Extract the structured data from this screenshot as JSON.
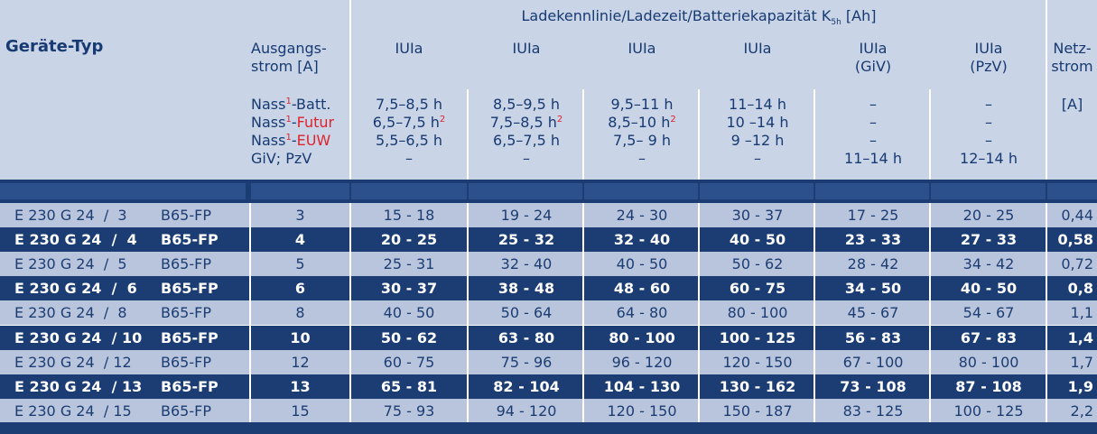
{
  "header": {
    "type_label": "Geräte-Typ",
    "output_label_1": "Ausgangs-",
    "output_label_2": "strom [A]",
    "title_prefix": "Ladekennlinie/Ladezeit/Batteriekapazität K",
    "title_sub": "5h",
    "title_suffix": " [Ah]",
    "net_1": "Netz-",
    "net_2": "strom",
    "net_unit": "[A]",
    "columns": [
      {
        "line1": "IUIa",
        "line2": ""
      },
      {
        "line1": "IUIa",
        "line2": ""
      },
      {
        "line1": "IUIa",
        "line2": ""
      },
      {
        "line1": "IUIa",
        "line2": ""
      },
      {
        "line1": "IUIa",
        "line2": "(GiV)"
      },
      {
        "line1": "IUIa",
        "line2": "(PzV)"
      }
    ],
    "battery_types": [
      {
        "prefix": "Nass",
        "sup": "1",
        "suffix": "-Batt.",
        "suffix_red": false
      },
      {
        "prefix": "Nass",
        "sup": "1",
        "suffix": "-Futur",
        "suffix_red": true
      },
      {
        "prefix": "Nass",
        "sup": "1",
        "suffix": "-EUW",
        "suffix_red": true
      },
      {
        "prefix": "GiV; PzV",
        "sup": "",
        "suffix": "",
        "suffix_red": false
      }
    ],
    "times": [
      [
        {
          "t": "7,5–8,5 h",
          "s": ""
        },
        {
          "t": "6,5–7,5 h",
          "s": "2"
        },
        {
          "t": "5,5–6,5 h",
          "s": ""
        },
        {
          "t": "–",
          "s": ""
        }
      ],
      [
        {
          "t": "8,5–9,5 h",
          "s": ""
        },
        {
          "t": "7,5–8,5 h",
          "s": "2"
        },
        {
          "t": "6,5–7,5 h",
          "s": ""
        },
        {
          "t": "–",
          "s": ""
        }
      ],
      [
        {
          "t": "9,5–11 h",
          "s": ""
        },
        {
          "t": "8,5–10 h",
          "s": "2"
        },
        {
          "t": "7,5– 9 h",
          "s": ""
        },
        {
          "t": "–",
          "s": ""
        }
      ],
      [
        {
          "t": "11–14 h",
          "s": ""
        },
        {
          "t": "10 –14 h",
          "s": ""
        },
        {
          "t": "9 –12 h",
          "s": ""
        },
        {
          "t": "–",
          "s": ""
        }
      ],
      [
        {
          "t": "–",
          "s": ""
        },
        {
          "t": "–",
          "s": ""
        },
        {
          "t": "–",
          "s": ""
        },
        {
          "t": "11–14 h",
          "s": ""
        }
      ],
      [
        {
          "t": "–",
          "s": ""
        },
        {
          "t": "–",
          "s": ""
        },
        {
          "t": "–",
          "s": ""
        },
        {
          "t": "12–14 h",
          "s": ""
        }
      ]
    ]
  },
  "rows": [
    {
      "model": "E 230 G 24  /  3",
      "code": "B65-FP",
      "current": "3",
      "vals": [
        "15 - 18",
        "19 - 24",
        "24 - 30",
        "30 - 37",
        "17 - 25",
        "20 - 25"
      ],
      "net": "0,44"
    },
    {
      "model": "E 230 G 24  /  4",
      "code": "B65-FP",
      "current": "4",
      "vals": [
        "20 - 25",
        "25 - 32",
        "32 - 40",
        "40 - 50",
        "23 - 33",
        "27 - 33"
      ],
      "net": "0,58"
    },
    {
      "model": "E 230 G 24  /  5",
      "code": "B65-FP",
      "current": "5",
      "vals": [
        "25 - 31",
        "32 - 40",
        "40 - 50",
        "50 - 62",
        "28 - 42",
        "34 - 42"
      ],
      "net": "0,72"
    },
    {
      "model": "E 230 G 24  /  6",
      "code": "B65-FP",
      "current": "6",
      "vals": [
        "30 - 37",
        "38 - 48",
        "48 - 60",
        "60 - 75",
        "34 - 50",
        "40 - 50"
      ],
      "net": "0,8"
    },
    {
      "model": "E 230 G 24  /  8",
      "code": "B65-FP",
      "current": "8",
      "vals": [
        "40 - 50",
        "50 - 64",
        "64 - 80",
        "80 - 100",
        "45 - 67",
        "54 - 67"
      ],
      "net": "1,1"
    },
    {
      "model": "E 230 G 24  / 10",
      "code": "B65-FP",
      "current": "10",
      "vals": [
        "50 - 62",
        "63 - 80",
        "80 - 100",
        "100 - 125",
        "56 - 83",
        "67 - 83"
      ],
      "net": "1,4"
    },
    {
      "model": "E 230 G 24  / 12",
      "code": "B65-FP",
      "current": "12",
      "vals": [
        "60 - 75",
        "75 - 96",
        "96 - 120",
        "120 - 150",
        "67 - 100",
        "80 - 100"
      ],
      "net": "1,7"
    },
    {
      "model": "E 230 G 24  / 13",
      "code": "B65-FP",
      "current": "13",
      "vals": [
        "65 - 81",
        "82 - 104",
        "104 - 130",
        "130 - 162",
        "73 - 108",
        "87 - 108"
      ],
      "net": "1,9"
    },
    {
      "model": "E 230 G 24  / 15",
      "code": "B65-FP",
      "current": "15",
      "vals": [
        "75 - 93",
        "94 - 120",
        "120 - 150",
        "150 - 187",
        "83 - 125",
        "100 - 125"
      ],
      "net": "2,2"
    }
  ]
}
